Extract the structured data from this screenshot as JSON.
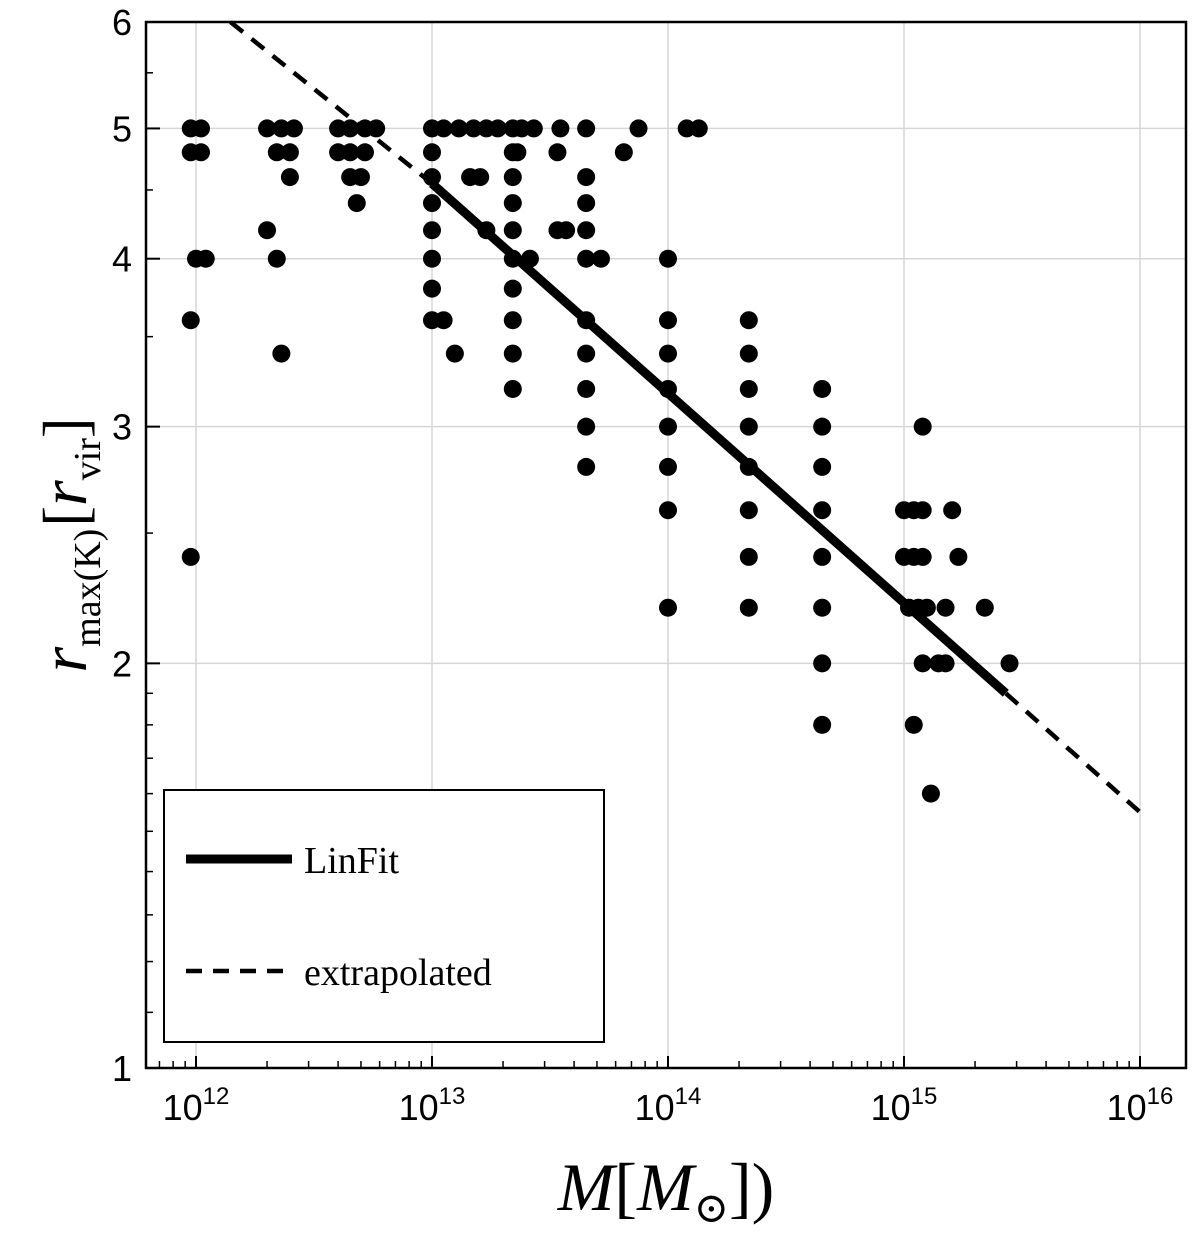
{
  "chart_data": {
    "type": "scatter",
    "title": "",
    "xscale": "log",
    "yscale": "log",
    "xlim": [
      600000000000.0,
      1.1e+16
    ],
    "ylim": [
      1,
      6
    ],
    "xlabel": {
      "main": "M",
      "inner": "M",
      "sub": "⊙",
      "close": "])"
    },
    "ylabel": {
      "main": "r",
      "sub": "max(K)",
      "inner": "r",
      "inner_sub": "vir"
    },
    "x_ticks": [
      {
        "value": 1000000000000.0,
        "base": "10",
        "exp": "12"
      },
      {
        "value": 10000000000000.0,
        "base": "10",
        "exp": "13"
      },
      {
        "value": 100000000000000.0,
        "base": "10",
        "exp": "14"
      },
      {
        "value": 1000000000000000.0,
        "base": "10",
        "exp": "15"
      },
      {
        "value": 1e+16,
        "base": "10",
        "exp": "16"
      }
    ],
    "y_ticks": [
      {
        "value": 1,
        "label": "1"
      },
      {
        "value": 2,
        "label": "2"
      },
      {
        "value": 3,
        "label": "3"
      },
      {
        "value": 4,
        "label": "4"
      },
      {
        "value": 5,
        "label": "5"
      },
      {
        "value": 6,
        "label": "6"
      }
    ],
    "grid": true,
    "legend": {
      "position": "bottom-left",
      "entries": [
        {
          "label": "LinFit",
          "style": "solid"
        },
        {
          "label": "extrapolated",
          "style": "dashed"
        }
      ]
    },
    "series": [
      {
        "name": "data",
        "type": "scatter",
        "points": [
          [
            950000000000.0,
            5.0
          ],
          [
            1050000000000.0,
            5.0
          ],
          [
            950000000000.0,
            4.8
          ],
          [
            1050000000000.0,
            4.8
          ],
          [
            1000000000000.0,
            4.0
          ],
          [
            1100000000000.0,
            4.0
          ],
          [
            950000000000.0,
            3.6
          ],
          [
            950000000000.0,
            2.4
          ],
          [
            2000000000000.0,
            5.0
          ],
          [
            2300000000000.0,
            5.0
          ],
          [
            2600000000000.0,
            5.0
          ],
          [
            2200000000000.0,
            4.8
          ],
          [
            2500000000000.0,
            4.8
          ],
          [
            2500000000000.0,
            4.6
          ],
          [
            2000000000000.0,
            4.2
          ],
          [
            2200000000000.0,
            4.0
          ],
          [
            2300000000000.0,
            3.4
          ],
          [
            4000000000000.0,
            5.0
          ],
          [
            4500000000000.0,
            5.0
          ],
          [
            5200000000000.0,
            5.0
          ],
          [
            5800000000000.0,
            5.0
          ],
          [
            4000000000000.0,
            4.8
          ],
          [
            4500000000000.0,
            4.8
          ],
          [
            5200000000000.0,
            4.8
          ],
          [
            4500000000000.0,
            4.6
          ],
          [
            5000000000000.0,
            4.6
          ],
          [
            4800000000000.0,
            4.4
          ],
          [
            10000000000000.0,
            5.0
          ],
          [
            11200000000000.0,
            5.0
          ],
          [
            13000000000000.0,
            5.0
          ],
          [
            15000000000000.0,
            5.0
          ],
          [
            17000000000000.0,
            5.0
          ],
          [
            10000000000000.0,
            4.8
          ],
          [
            10000000000000.0,
            4.6
          ],
          [
            10000000000000.0,
            4.4
          ],
          [
            10000000000000.0,
            4.2
          ],
          [
            10000000000000.0,
            4.0
          ],
          [
            10000000000000.0,
            3.8
          ],
          [
            10000000000000.0,
            3.6
          ],
          [
            11200000000000.0,
            3.6
          ],
          [
            12500000000000.0,
            3.4
          ],
          [
            14500000000000.0,
            4.6
          ],
          [
            16000000000000.0,
            4.6
          ],
          [
            17000000000000.0,
            4.2
          ],
          [
            19000000000000.0,
            5.0
          ],
          [
            22000000000000.0,
            5.0
          ],
          [
            24000000000000.0,
            5.0
          ],
          [
            27000000000000.0,
            5.0
          ],
          [
            22000000000000.0,
            4.8
          ],
          [
            23000000000000.0,
            4.8
          ],
          [
            22000000000000.0,
            4.6
          ],
          [
            22000000000000.0,
            4.4
          ],
          [
            22000000000000.0,
            4.2
          ],
          [
            22000000000000.0,
            4.0
          ],
          [
            26000000000000.0,
            4.0
          ],
          [
            22000000000000.0,
            3.8
          ],
          [
            22000000000000.0,
            3.6
          ],
          [
            22000000000000.0,
            3.4
          ],
          [
            22000000000000.0,
            3.2
          ],
          [
            35000000000000.0,
            5.0
          ],
          [
            34000000000000.0,
            4.8
          ],
          [
            34000000000000.0,
            4.2
          ],
          [
            37000000000000.0,
            4.2
          ],
          [
            45000000000000.0,
            5.0
          ],
          [
            45000000000000.0,
            4.6
          ],
          [
            45000000000000.0,
            4.4
          ],
          [
            45000000000000.0,
            4.2
          ],
          [
            45000000000000.0,
            4.0
          ],
          [
            52000000000000.0,
            4.0
          ],
          [
            45000000000000.0,
            3.6
          ],
          [
            45000000000000.0,
            3.4
          ],
          [
            45000000000000.0,
            3.2
          ],
          [
            45000000000000.0,
            3.0
          ],
          [
            45000000000000.0,
            2.8
          ],
          [
            65000000000000.0,
            4.8
          ],
          [
            75000000000000.0,
            5.0
          ],
          [
            120000000000000.0,
            5.0
          ],
          [
            135000000000000.0,
            5.0
          ],
          [
            100000000000000.0,
            4.0
          ],
          [
            100000000000000.0,
            3.6
          ],
          [
            100000000000000.0,
            3.4
          ],
          [
            100000000000000.0,
            3.2
          ],
          [
            100000000000000.0,
            3.0
          ],
          [
            100000000000000.0,
            2.8
          ],
          [
            100000000000000.0,
            2.6
          ],
          [
            100000000000000.0,
            2.2
          ],
          [
            220000000000000.0,
            3.6
          ],
          [
            220000000000000.0,
            3.4
          ],
          [
            220000000000000.0,
            3.2
          ],
          [
            220000000000000.0,
            3.0
          ],
          [
            220000000000000.0,
            2.8
          ],
          [
            220000000000000.0,
            2.6
          ],
          [
            220000000000000.0,
            2.4
          ],
          [
            220000000000000.0,
            2.2
          ],
          [
            450000000000000.0,
            3.2
          ],
          [
            450000000000000.0,
            3.0
          ],
          [
            450000000000000.0,
            2.8
          ],
          [
            450000000000000.0,
            2.6
          ],
          [
            450000000000000.0,
            2.4
          ],
          [
            450000000000000.0,
            2.2
          ],
          [
            450000000000000.0,
            2.0
          ],
          [
            450000000000000.0,
            1.8
          ],
          [
            1000000000000000.0,
            2.6
          ],
          [
            1100000000000000.0,
            2.6
          ],
          [
            1200000000000000.0,
            2.6
          ],
          [
            1000000000000000.0,
            2.4
          ],
          [
            1100000000000000.0,
            2.4
          ],
          [
            1200000000000000.0,
            2.4
          ],
          [
            1050000000000000.0,
            2.2
          ],
          [
            1150000000000000.0,
            2.2
          ],
          [
            1250000000000000.0,
            2.2
          ],
          [
            1500000000000000.0,
            2.2
          ],
          [
            1200000000000000.0,
            3.0
          ],
          [
            1200000000000000.0,
            2.0
          ],
          [
            1400000000000000.0,
            2.0
          ],
          [
            1500000000000000.0,
            2.0
          ],
          [
            1100000000000000.0,
            1.8
          ],
          [
            1300000000000000.0,
            1.6
          ],
          [
            1600000000000000.0,
            2.6
          ],
          [
            1700000000000000.0,
            2.4
          ],
          [
            2200000000000000.0,
            2.2
          ],
          [
            2800000000000000.0,
            2.0
          ]
        ]
      },
      {
        "name": "LinFit",
        "type": "line",
        "style": "solid",
        "x": [
          10000000000000.0,
          2700000000000000.0
        ],
        "y": [
          4.55,
          1.9
        ]
      },
      {
        "name": "extrapolated",
        "type": "line",
        "style": "dashed",
        "x": [
          1400000000000.0,
          10000000000000.0,
          2700000000000000.0,
          1e+16
        ],
        "y": [
          6.0,
          4.55,
          1.9,
          1.55
        ]
      }
    ]
  }
}
